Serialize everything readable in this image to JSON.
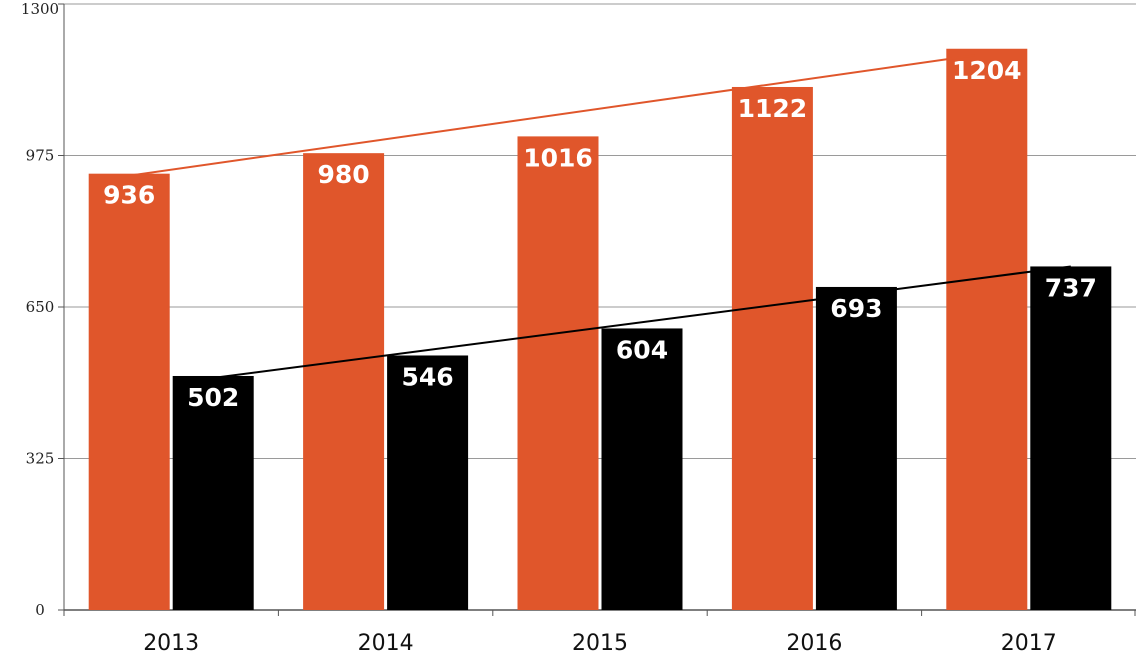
{
  "chart_data": {
    "type": "bar",
    "categories": [
      "2013",
      "2014",
      "2015",
      "2016",
      "2017"
    ],
    "series": [
      {
        "values": [
          936,
          980,
          1016,
          1122,
          1204
        ],
        "color": "#e0562b",
        "label_color": "#ffffff"
      },
      {
        "values": [
          502,
          546,
          604,
          693,
          737
        ],
        "color": "#000000",
        "label_color": "#ffffff"
      }
    ],
    "trendlines": [
      {
        "series": 0,
        "color": "#e0562b",
        "start": 928,
        "end": 1190
      },
      {
        "series": 1,
        "color": "#000000",
        "start": 494,
        "end": 737
      }
    ],
    "ylim": [
      0,
      1300
    ],
    "yticks": [
      "0",
      "325",
      "650",
      "975",
      "1300"
    ],
    "yticks_values": [
      0,
      325,
      650,
      975,
      1300
    ],
    "grid": true,
    "legend": "none",
    "title": "",
    "xlabel": "",
    "ylabel": ""
  }
}
